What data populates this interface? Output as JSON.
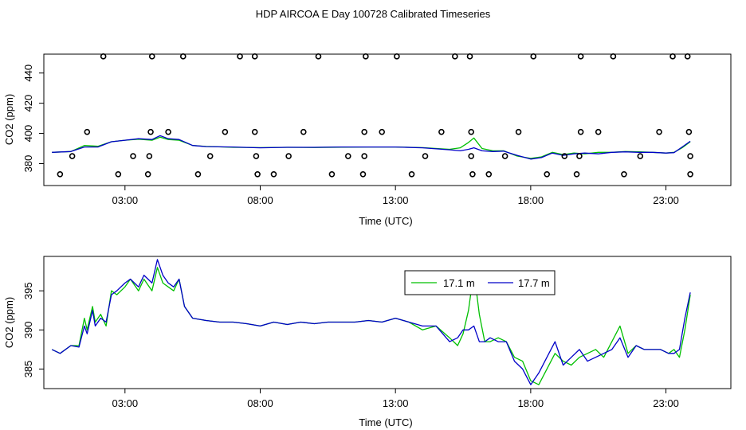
{
  "figure": {
    "title": "HDP AIRCOA E  Day 100728  Calibrated Timeseries"
  },
  "colors": {
    "series_a": "#00c000",
    "series_b": "#0000c8",
    "frame": "#000000",
    "points": "#000000"
  },
  "chart_data": [
    {
      "type": "scatter",
      "title": "HDP AIRCOA E  Day 100728  Calibrated Timeseries",
      "xlabel": "Time (UTC)",
      "ylabel": "CO2 (ppm)",
      "xlim": [
        0.0,
        25.4
      ],
      "ylim": [
        365.5,
        452.5
      ],
      "x_ticks": [
        3,
        8,
        13,
        18,
        23
      ],
      "x_tick_labels": [
        "03:00",
        "08:00",
        "13:00",
        "18:00",
        "23:00"
      ],
      "y_ticks": [
        380,
        400,
        420,
        440
      ],
      "y_tick_labels": [
        "380",
        "400",
        "420",
        "440"
      ],
      "grid": false,
      "points": [
        {
          "x": 2.2,
          "y": 451
        },
        {
          "x": 4.0,
          "y": 451
        },
        {
          "x": 5.15,
          "y": 451
        },
        {
          "x": 7.25,
          "y": 451
        },
        {
          "x": 7.8,
          "y": 451
        },
        {
          "x": 10.15,
          "y": 451
        },
        {
          "x": 11.9,
          "y": 451
        },
        {
          "x": 13.05,
          "y": 451
        },
        {
          "x": 15.2,
          "y": 451
        },
        {
          "x": 15.75,
          "y": 451
        },
        {
          "x": 18.1,
          "y": 451
        },
        {
          "x": 19.85,
          "y": 451
        },
        {
          "x": 21.05,
          "y": 451
        },
        {
          "x": 23.25,
          "y": 451
        },
        {
          "x": 23.8,
          "y": 451
        },
        {
          "x": 1.6,
          "y": 401
        },
        {
          "x": 3.95,
          "y": 401
        },
        {
          "x": 4.6,
          "y": 401
        },
        {
          "x": 6.7,
          "y": 401
        },
        {
          "x": 7.8,
          "y": 401
        },
        {
          "x": 9.6,
          "y": 401
        },
        {
          "x": 11.85,
          "y": 401
        },
        {
          "x": 12.5,
          "y": 401
        },
        {
          "x": 14.7,
          "y": 401
        },
        {
          "x": 15.8,
          "y": 401
        },
        {
          "x": 17.55,
          "y": 401
        },
        {
          "x": 19.85,
          "y": 401
        },
        {
          "x": 20.5,
          "y": 401
        },
        {
          "x": 22.75,
          "y": 401
        },
        {
          "x": 23.85,
          "y": 401
        },
        {
          "x": 1.05,
          "y": 385
        },
        {
          "x": 3.3,
          "y": 385
        },
        {
          "x": 3.9,
          "y": 385
        },
        {
          "x": 6.15,
          "y": 385
        },
        {
          "x": 7.85,
          "y": 385
        },
        {
          "x": 9.05,
          "y": 385
        },
        {
          "x": 11.25,
          "y": 385
        },
        {
          "x": 11.85,
          "y": 385
        },
        {
          "x": 14.1,
          "y": 385
        },
        {
          "x": 15.8,
          "y": 385
        },
        {
          "x": 17.05,
          "y": 385
        },
        {
          "x": 19.25,
          "y": 385
        },
        {
          "x": 19.8,
          "y": 385
        },
        {
          "x": 22.05,
          "y": 385
        },
        {
          "x": 23.9,
          "y": 385
        },
        {
          "x": 0.6,
          "y": 373
        },
        {
          "x": 2.75,
          "y": 373
        },
        {
          "x": 3.85,
          "y": 373
        },
        {
          "x": 5.7,
          "y": 373
        },
        {
          "x": 7.9,
          "y": 373
        },
        {
          "x": 8.5,
          "y": 373
        },
        {
          "x": 10.65,
          "y": 373
        },
        {
          "x": 11.8,
          "y": 373
        },
        {
          "x": 13.6,
          "y": 373
        },
        {
          "x": 15.85,
          "y": 373
        },
        {
          "x": 16.45,
          "y": 373
        },
        {
          "x": 18.6,
          "y": 373
        },
        {
          "x": 19.7,
          "y": 373
        },
        {
          "x": 21.45,
          "y": 373
        },
        {
          "x": 23.9,
          "y": 373
        }
      ],
      "series": [
        {
          "x": [
            0.3,
            1.0,
            1.5,
            2.0,
            2.5,
            3.0,
            3.5,
            4.0,
            4.3,
            4.6,
            5.0,
            5.5,
            6.0,
            7.0,
            8.0,
            9.0,
            10.0,
            11.0,
            12.0,
            13.0,
            14.0,
            15.0,
            15.4,
            15.7,
            15.9,
            16.2,
            16.6,
            17.0,
            17.5,
            18.0,
            18.4,
            18.8,
            19.2,
            19.6,
            20.0,
            20.5,
            21.0,
            21.5,
            22.0,
            22.5,
            23.0,
            23.3,
            23.6,
            23.9
          ],
          "y": [
            387.5,
            388.0,
            392.0,
            391.5,
            394.5,
            395.5,
            396.2,
            395.5,
            397.5,
            396.0,
            395.5,
            392.0,
            391.4,
            390.8,
            390.6,
            390.8,
            390.7,
            390.9,
            391.0,
            391.0,
            390.6,
            389.5,
            390.5,
            394.0,
            397.0,
            390.0,
            388.5,
            388.5,
            385.0,
            383.5,
            384.5,
            387.5,
            386.0,
            387.0,
            386.5,
            387.5,
            387.5,
            388.0,
            387.8,
            387.5,
            387.0,
            387.5,
            390.5,
            394.5
          ]
        },
        {
          "x": [
            0.3,
            1.0,
            1.5,
            2.0,
            2.5,
            3.0,
            3.5,
            4.0,
            4.3,
            4.6,
            5.0,
            5.5,
            6.0,
            7.0,
            8.0,
            9.0,
            10.0,
            11.0,
            12.0,
            13.0,
            14.0,
            15.0,
            15.4,
            15.7,
            15.9,
            16.2,
            16.6,
            17.0,
            17.5,
            18.0,
            18.4,
            18.8,
            19.2,
            19.6,
            20.0,
            20.5,
            21.0,
            21.5,
            22.0,
            22.5,
            23.0,
            23.3,
            23.6,
            23.9
          ],
          "y": [
            387.5,
            388.0,
            391.0,
            391.0,
            394.5,
            395.5,
            396.5,
            396.0,
            398.5,
            396.5,
            396.0,
            392.0,
            391.3,
            391.0,
            390.5,
            390.8,
            390.8,
            391.0,
            391.0,
            391.0,
            390.5,
            389.2,
            388.5,
            389.5,
            390.5,
            388.5,
            388.0,
            388.3,
            385.5,
            383.0,
            384.0,
            387.0,
            385.5,
            386.5,
            387.0,
            386.5,
            387.5,
            387.8,
            387.5,
            387.5,
            387.0,
            387.3,
            391.0,
            394.8
          ]
        }
      ]
    },
    {
      "type": "line",
      "xlabel": "Time (UTC)",
      "ylabel": "CO2 (ppm)",
      "xlim": [
        0.0,
        25.4
      ],
      "ylim": [
        382.5,
        399.4
      ],
      "x_ticks": [
        3,
        8,
        13,
        18,
        23
      ],
      "x_tick_labels": [
        "03:00",
        "08:00",
        "13:00",
        "18:00",
        "23:00"
      ],
      "y_ticks": [
        385,
        390,
        395
      ],
      "y_tick_labels": [
        "385",
        "390",
        "395"
      ],
      "grid": false,
      "legend": "top-right",
      "series": [
        {
          "name": "17.1 m",
          "x": [
            0.3,
            0.6,
            1.0,
            1.3,
            1.5,
            1.6,
            1.8,
            1.9,
            2.1,
            2.3,
            2.5,
            2.7,
            3.0,
            3.2,
            3.5,
            3.7,
            4.0,
            4.2,
            4.4,
            4.6,
            4.8,
            5.0,
            5.2,
            5.5,
            6.0,
            6.5,
            7.0,
            7.5,
            8.0,
            8.5,
            9.0,
            9.5,
            10.0,
            10.5,
            11.0,
            11.5,
            12.0,
            12.5,
            13.0,
            13.5,
            14.0,
            14.5,
            15.0,
            15.3,
            15.5,
            15.7,
            15.9,
            16.1,
            16.3,
            16.5,
            16.8,
            17.1,
            17.4,
            17.7,
            18.0,
            18.3,
            18.6,
            18.9,
            19.2,
            19.5,
            19.8,
            20.1,
            20.4,
            20.7,
            21.0,
            21.3,
            21.6,
            21.9,
            22.2,
            22.5,
            22.8,
            23.1,
            23.3,
            23.5,
            23.7,
            23.9
          ],
          "y": [
            387.5,
            387.0,
            388.0,
            388.0,
            391.5,
            390.0,
            393.0,
            391.0,
            392.0,
            390.5,
            395.0,
            394.5,
            395.5,
            396.5,
            395.0,
            396.5,
            395.0,
            398.0,
            396.0,
            395.5,
            395.0,
            396.5,
            393.0,
            391.5,
            391.2,
            391.0,
            391.0,
            390.8,
            390.5,
            391.0,
            390.7,
            391.0,
            390.8,
            391.0,
            391.0,
            391.0,
            391.2,
            391.0,
            391.5,
            391.0,
            390.0,
            390.5,
            389.0,
            388.0,
            389.5,
            392.5,
            397.5,
            392.0,
            388.5,
            388.5,
            389.0,
            388.5,
            386.5,
            386.0,
            383.5,
            383.0,
            385.0,
            387.0,
            386.0,
            385.5,
            386.5,
            387.0,
            387.5,
            386.5,
            388.5,
            390.5,
            387.0,
            388.0,
            387.5,
            387.5,
            387.5,
            387.0,
            387.5,
            386.5,
            390.0,
            394.5
          ]
        },
        {
          "name": "17.7 m",
          "x": [
            0.3,
            0.6,
            1.0,
            1.3,
            1.5,
            1.6,
            1.8,
            1.9,
            2.1,
            2.3,
            2.5,
            2.7,
            3.0,
            3.2,
            3.5,
            3.7,
            4.0,
            4.2,
            4.4,
            4.6,
            4.8,
            5.0,
            5.2,
            5.5,
            6.0,
            6.5,
            7.0,
            7.5,
            8.0,
            8.5,
            9.0,
            9.5,
            10.0,
            10.5,
            11.0,
            11.5,
            12.0,
            12.5,
            13.0,
            13.5,
            14.0,
            14.5,
            15.0,
            15.3,
            15.5,
            15.7,
            15.9,
            16.1,
            16.3,
            16.5,
            16.8,
            17.1,
            17.4,
            17.7,
            18.0,
            18.3,
            18.6,
            18.9,
            19.2,
            19.5,
            19.8,
            20.1,
            20.4,
            20.7,
            21.0,
            21.3,
            21.6,
            21.9,
            22.2,
            22.5,
            22.8,
            23.1,
            23.3,
            23.5,
            23.7,
            23.9
          ],
          "y": [
            387.5,
            387.0,
            388.0,
            387.8,
            390.5,
            389.5,
            392.5,
            390.5,
            391.5,
            391.0,
            394.5,
            395.0,
            396.0,
            396.5,
            395.5,
            397.0,
            396.0,
            399.0,
            397.0,
            396.0,
            395.5,
            396.5,
            393.0,
            391.5,
            391.2,
            391.0,
            391.0,
            390.8,
            390.5,
            391.0,
            390.7,
            391.0,
            390.8,
            391.0,
            391.0,
            391.0,
            391.2,
            391.0,
            391.5,
            391.0,
            390.5,
            390.5,
            388.5,
            389.0,
            390.0,
            390.0,
            390.5,
            388.5,
            388.5,
            389.0,
            388.5,
            388.5,
            386.0,
            385.0,
            383.0,
            384.5,
            386.5,
            388.5,
            385.5,
            386.5,
            387.5,
            386.0,
            386.5,
            387.0,
            387.5,
            389.0,
            386.5,
            388.0,
            387.5,
            387.5,
            387.5,
            387.0,
            387.0,
            387.5,
            391.5,
            394.8
          ]
        }
      ]
    }
  ]
}
